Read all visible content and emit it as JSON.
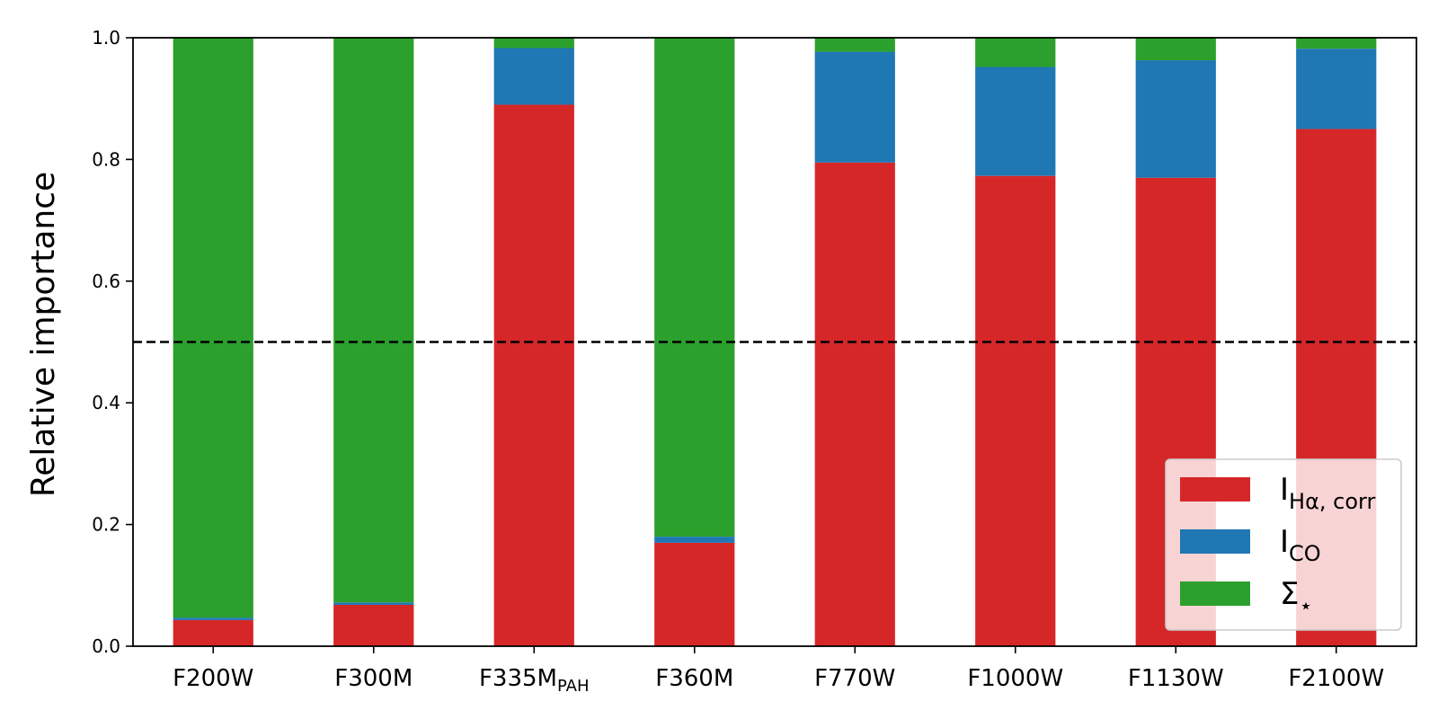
{
  "chart_data": {
    "type": "bar",
    "stacked": true,
    "categories": [
      "F200W",
      "F300M",
      "F335M_PAH",
      "F360M",
      "F770W",
      "F1000W",
      "F1130W",
      "F2100W"
    ],
    "category_labels": [
      {
        "main": "F200W",
        "sub": ""
      },
      {
        "main": "F300M",
        "sub": ""
      },
      {
        "main": "F335M",
        "sub": "PAH"
      },
      {
        "main": "F360M",
        "sub": ""
      },
      {
        "main": "F770W",
        "sub": ""
      },
      {
        "main": "F1000W",
        "sub": ""
      },
      {
        "main": "F1130W",
        "sub": ""
      },
      {
        "main": "F2100W",
        "sub": ""
      }
    ],
    "series": [
      {
        "name": "I_Hα,corr",
        "label_main": "I",
        "label_sub": "Hα, corr",
        "color": "#d62728",
        "values": [
          0.043,
          0.068,
          0.89,
          0.17,
          0.795,
          0.773,
          0.77,
          0.85
        ]
      },
      {
        "name": "I_CO",
        "label_main": "I",
        "label_sub": "CO",
        "color": "#1f77b4",
        "values": [
          0.004,
          0.004,
          0.093,
          0.01,
          0.182,
          0.179,
          0.193,
          0.132
        ]
      },
      {
        "name": "Σ⋆",
        "label_main": "Σ",
        "label_sub": "⋆",
        "color": "#2ca02c",
        "values": [
          0.953,
          0.928,
          0.017,
          0.82,
          0.023,
          0.048,
          0.037,
          0.018
        ]
      }
    ],
    "ylabel": "Relative importance",
    "xlabel": "",
    "ylim": [
      0,
      1.0
    ],
    "yticks": [
      "0.0",
      "0.2",
      "0.4",
      "0.6",
      "0.8",
      "1.0"
    ],
    "reference_line": {
      "y": 0.5,
      "style": "dashed",
      "color": "#000000"
    },
    "legend_position": "lower-right",
    "grid": false
  }
}
